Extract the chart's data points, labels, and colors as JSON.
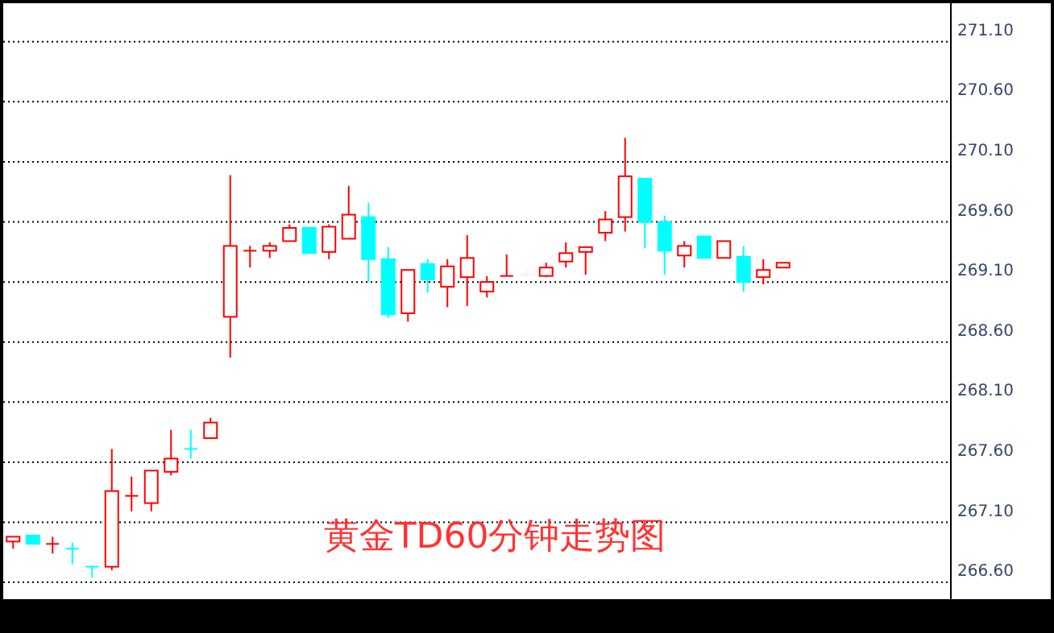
{
  "chart_data": {
    "type": "candlestick",
    "title": "黄金TD60分钟走势图",
    "categories": [
      null,
      null,
      null,
      null,
      null,
      null,
      null,
      null,
      null,
      null,
      null,
      null,
      null,
      null,
      null,
      null,
      null,
      null,
      null,
      null,
      null,
      null,
      null,
      null,
      null,
      null,
      null,
      null,
      null,
      null,
      null,
      null,
      null,
      null,
      null,
      null,
      null,
      null,
      null,
      null,
      null,
      null,
      null,
      null,
      null,
      null,
      null,
      null
    ],
    "ohlc": [
      [
        266.94,
        266.98,
        266.88,
        266.98
      ],
      [
        266.99,
        266.99,
        266.92,
        266.92
      ],
      [
        266.92,
        266.98,
        266.84,
        266.92
      ],
      [
        266.88,
        266.93,
        266.75,
        266.88
      ],
      [
        266.73,
        266.73,
        266.64,
        266.73
      ],
      [
        266.73,
        267.71,
        266.7,
        267.36
      ],
      [
        267.32,
        267.48,
        267.19,
        267.32
      ],
      [
        267.26,
        267.53,
        267.19,
        267.53
      ],
      [
        267.52,
        267.87,
        267.49,
        267.63
      ],
      [
        267.71,
        267.87,
        267.63,
        267.71
      ],
      [
        267.8,
        267.97,
        267.8,
        267.93
      ],
      [
        268.81,
        269.99,
        268.47,
        269.4
      ],
      [
        269.36,
        269.4,
        269.22,
        269.36
      ],
      [
        269.36,
        269.43,
        269.3,
        269.4
      ],
      [
        269.44,
        269.58,
        269.44,
        269.55
      ],
      [
        269.55,
        269.55,
        269.34,
        269.34
      ],
      [
        269.35,
        269.58,
        269.29,
        269.56
      ],
      [
        269.46,
        269.9,
        269.46,
        269.66
      ],
      [
        269.64,
        269.76,
        269.1,
        269.29
      ],
      [
        269.29,
        269.39,
        268.8,
        268.83
      ],
      [
        268.84,
        269.2,
        268.77,
        269.2
      ],
      [
        269.25,
        269.29,
        269.01,
        269.12
      ],
      [
        269.06,
        269.29,
        268.89,
        269.23
      ],
      [
        269.14,
        269.49,
        268.9,
        269.3
      ],
      [
        269.02,
        269.15,
        268.97,
        269.1
      ],
      [
        269.15,
        269.33,
        269.15,
        269.15
      ],
      [
        269.16,
        269.2,
        269.14,
        269.16
      ],
      [
        269.15,
        269.26,
        269.14,
        269.22
      ],
      [
        269.27,
        269.43,
        269.22,
        269.34
      ],
      [
        269.35,
        269.39,
        269.16,
        269.39
      ],
      [
        269.51,
        269.69,
        269.44,
        269.62
      ],
      [
        269.64,
        270.3,
        269.52,
        269.98
      ],
      [
        269.96,
        269.96,
        269.38,
        269.6
      ],
      [
        269.6,
        269.65,
        269.16,
        269.36
      ],
      [
        269.32,
        269.44,
        269.22,
        269.4
      ],
      [
        269.48,
        269.48,
        269.3,
        269.3
      ],
      [
        269.3,
        269.44,
        269.3,
        269.44
      ],
      [
        269.31,
        269.4,
        269.02,
        269.1
      ],
      [
        269.14,
        269.29,
        269.08,
        269.2
      ],
      [
        269.22,
        269.26,
        269.22,
        269.26
      ],
      null,
      null,
      null,
      null,
      null,
      null,
      null,
      null
    ],
    "colors": [
      "#ff0000",
      "#00ffff",
      "#ff0000",
      "#00ffff",
      "#00ffff",
      "#ff0000",
      "#ff0000",
      "#ff0000",
      "#ff0000",
      "#00ffff",
      "#ff0000",
      "#ff0000",
      "#ff0000",
      "#ff0000",
      "#ff0000",
      "#00ffff",
      "#ff0000",
      "#ff0000",
      "#00ffff",
      "#00ffff",
      "#ff0000",
      "#00ffff",
      "#ff0000",
      "#ff0000",
      "#ff0000",
      "#ff0000",
      "#f2f2f2",
      "#ff0000",
      "#ff0000",
      "#ff0000",
      "#ff0000",
      "#ff0000",
      "#00ffff",
      "#00ffff",
      "#ff0000",
      "#00ffff",
      "#ff0000",
      "#00ffff",
      "#ff0000",
      "#ff0000",
      null,
      null,
      null,
      null,
      null,
      null,
      null,
      null
    ],
    "ylim": [
      266.46,
      271.42
    ],
    "yticks": [
      {
        "value": 266.6,
        "label": "266.60"
      },
      {
        "value": 267.1,
        "label": "267.10"
      },
      {
        "value": 267.6,
        "label": "267.60"
      },
      {
        "value": 268.1,
        "label": "268.10"
      },
      {
        "value": 268.6,
        "label": "268.60"
      },
      {
        "value": 269.1,
        "label": "269.10"
      },
      {
        "value": 269.6,
        "label": "269.60"
      },
      {
        "value": 270.1,
        "label": "270.10"
      },
      {
        "value": 270.6,
        "label": "270.60"
      },
      {
        "value": 271.1,
        "label": "271.10"
      }
    ],
    "grid": "y",
    "tick_labels": "y"
  }
}
